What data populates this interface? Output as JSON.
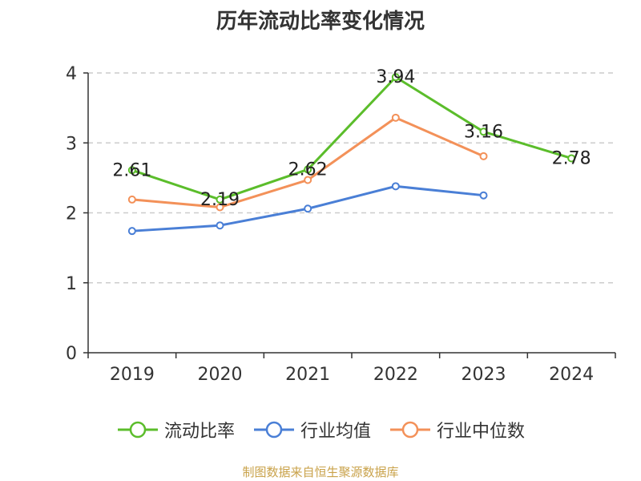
{
  "title": "历年流动比率变化情况",
  "source": "制图数据来自恒生聚源数据库",
  "chart_data": {
    "type": "line",
    "categories": [
      "2019",
      "2020",
      "2021",
      "2022",
      "2023",
      "2024"
    ],
    "yticks": [
      "0",
      "1",
      "2",
      "3",
      "4"
    ],
    "ylim": [
      0,
      4
    ],
    "grid": true,
    "legend_position": "bottom",
    "series": [
      {
        "name": "流动比率",
        "color": "#5bbd2b",
        "values": [
          2.61,
          2.19,
          2.62,
          3.94,
          3.16,
          2.78
        ],
        "labels": [
          "2.61",
          "2.19",
          "2.62",
          "3.94",
          "3.16",
          "2.78"
        ]
      },
      {
        "name": "行业均值",
        "color": "#4a7fd6",
        "values": [
          1.74,
          1.82,
          2.06,
          2.38,
          2.25,
          null
        ]
      },
      {
        "name": "行业中位数",
        "color": "#f39159",
        "values": [
          2.19,
          2.08,
          2.47,
          3.36,
          2.81,
          null
        ]
      }
    ]
  }
}
